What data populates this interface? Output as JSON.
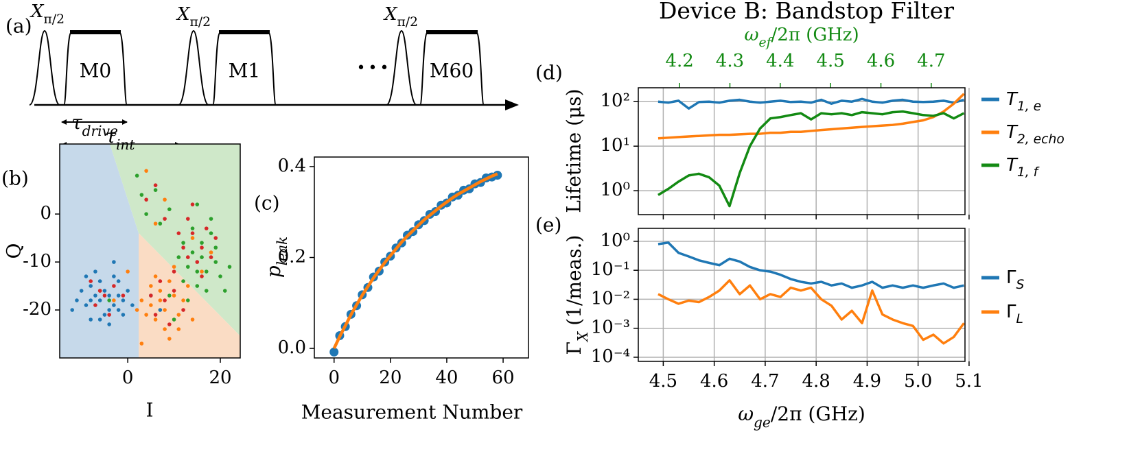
{
  "diagram": {
    "panel_label": "(a)",
    "pulse_label": [
      {
        "text": "X",
        "italic": true
      },
      {
        "text": "π/2",
        "sub": true
      }
    ],
    "measurements": [
      "M0",
      "M1",
      "M60"
    ],
    "ellipsis": "•••",
    "tau_drive": [
      {
        "text": "τ",
        "italic": true
      },
      {
        "text": "drive",
        "sub": true,
        "italic": true
      }
    ],
    "tau_int": [
      {
        "text": "τ",
        "italic": true
      },
      {
        "text": "int",
        "sub": true,
        "italic": true
      }
    ]
  },
  "chart_data": [
    {
      "type": "scatter",
      "panel_label": "(b)",
      "xlabel": "I",
      "ylabel": "Q",
      "xlim": [
        -14.7,
        24.3
      ],
      "ylim": [
        -30,
        14.6
      ],
      "xticks": [
        0,
        20
      ],
      "yticks": [
        -20,
        -10,
        0
      ],
      "series": [
        {
          "color": "#1f77b4",
          "x": [
            -8,
            -3,
            -6,
            -2,
            -9,
            -4,
            -7,
            -1,
            -5,
            -10,
            -3,
            -6,
            0,
            -8,
            -2,
            -11,
            -4,
            -6,
            -1,
            -7,
            -12,
            -3,
            -5,
            -9,
            1,
            -4,
            -8,
            -2,
            5,
            7
          ],
          "values": [
            -15,
            -19,
            -22,
            -14,
            -19,
            -17,
            -12,
            -18,
            -21,
            -16,
            -13,
            -18,
            -16,
            -22,
            -20,
            -18,
            -23,
            -14,
            -21,
            -17,
            -20,
            -10,
            -16,
            -13,
            -19,
            -20,
            -18,
            -17,
            -17,
            -20
          ]
        },
        {
          "color": "#ff7f0e",
          "x": [
            5,
            8,
            10,
            6,
            3,
            9,
            11,
            7,
            4,
            12,
            8,
            6,
            10,
            13,
            2,
            9,
            5,
            14,
            7,
            11,
            -3,
            -6,
            8,
            6,
            14,
            16,
            4,
            0,
            18,
            3
          ],
          "values": [
            -15,
            -20,
            -17,
            -22,
            -18,
            -14,
            -21,
            -18,
            -21,
            -18,
            -24,
            -13,
            -11,
            -15,
            -20,
            -26,
            -19,
            -22,
            -16,
            -24,
            -18,
            -16,
            3,
            -2,
            -5,
            -12,
            9,
            -12,
            -8,
            -27
          ]
        },
        {
          "color": "#2ca02c",
          "x": [
            14,
            17,
            12,
            16,
            19,
            13,
            15,
            18,
            11,
            20,
            16,
            14,
            17,
            12,
            15,
            19,
            9,
            21,
            6,
            4,
            2,
            9,
            -4,
            10,
            13,
            22,
            3,
            18,
            7,
            15
          ],
          "values": [
            -8,
            -12,
            -14,
            -6,
            -10,
            -11,
            -15,
            -4,
            -9,
            -13,
            -9,
            -3,
            -16,
            -6,
            -12,
            -7,
            -17,
            -16,
            5,
            0,
            8,
            1,
            -18,
            -22,
            -18,
            -11,
            4,
            -1,
            -2,
            2
          ]
        },
        {
          "color": "#d62728",
          "x": [
            -5,
            -3,
            -7,
            -4,
            -1,
            -8,
            -6,
            8,
            6,
            10,
            5,
            9,
            7,
            12,
            14,
            16,
            13,
            17,
            15,
            12,
            18,
            14,
            16,
            11,
            19,
            10,
            13,
            4,
            8,
            6
          ],
          "values": [
            -17,
            -15,
            -19,
            -21,
            -17,
            -14,
            -16,
            -18,
            -21,
            -16,
            -17,
            -23,
            -14,
            -20,
            -4,
            -7,
            -1,
            -3,
            -10,
            -7,
            -9,
            2,
            -13,
            -4,
            -5,
            -12,
            -9,
            3,
            -1,
            6
          ]
        }
      ]
    },
    {
      "type": "scatter",
      "panel_label": "(c)",
      "xlabel": "Measurement Number",
      "ylabel": [
        {
          "text": "p",
          "italic": true
        },
        {
          "text": "leak",
          "sub": true,
          "italic": true
        }
      ],
      "xlim": [
        -7,
        69
      ],
      "ylim": [
        -0.021,
        0.421
      ],
      "xticks": [
        0,
        20,
        40,
        60
      ],
      "yticks": [
        {
          "value": 0,
          "label": "0.0"
        },
        0.2,
        0.4
      ],
      "series": [
        {
          "color": "#1f77b4",
          "style": "markers",
          "x": [
            0,
            2,
            4,
            6,
            8,
            10,
            12,
            14,
            16,
            18,
            20,
            22,
            24,
            26,
            28,
            30,
            32,
            34,
            36,
            38,
            40,
            42,
            44,
            46,
            48,
            50,
            52,
            54,
            56,
            58
          ],
          "values": [
            -0.008,
            0.028,
            0.048,
            0.075,
            0.094,
            0.118,
            0.134,
            0.157,
            0.17,
            0.19,
            0.203,
            0.221,
            0.232,
            0.249,
            0.257,
            0.272,
            0.281,
            0.295,
            0.301,
            0.315,
            0.32,
            0.333,
            0.337,
            0.348,
            0.351,
            0.362,
            0.365,
            0.375,
            0.377,
            0.381
          ]
        },
        {
          "color": "#ff7f0e",
          "style": "line",
          "x": [
            0,
            2,
            4,
            6,
            8,
            10,
            12,
            14,
            16,
            18,
            20,
            22,
            24,
            26,
            28,
            30,
            32,
            34,
            36,
            38,
            40,
            42,
            44,
            46,
            48,
            50,
            52,
            54,
            56,
            58
          ],
          "values": [
            0,
            0.026,
            0.05,
            0.074,
            0.096,
            0.117,
            0.136,
            0.155,
            0.172,
            0.189,
            0.204,
            0.219,
            0.234,
            0.247,
            0.259,
            0.271,
            0.283,
            0.293,
            0.303,
            0.313,
            0.322,
            0.331,
            0.339,
            0.346,
            0.353,
            0.36,
            0.367,
            0.373,
            0.379,
            0.384
          ]
        }
      ]
    },
    {
      "type": "line",
      "title": "Device B: Bandstop Filter",
      "panel_label": "(d)",
      "ylabel": "Lifetime (μs)",
      "x2label": [
        {
          "text": "ω",
          "italic": true
        },
        {
          "text": "ef",
          "sub": true,
          "italic": true
        },
        {
          "text": "/2π (GHz)"
        }
      ],
      "x2lim": [
        4.118,
        4.767
      ],
      "x2ticks": [
        4.2,
        4.3,
        4.4,
        4.5,
        4.6,
        4.7
      ],
      "x2color": "#138a13",
      "xlim": [
        4.451,
        5.092
      ],
      "xticks": [
        4.5,
        4.6,
        4.7,
        4.8,
        4.9,
        {
          "value": 5,
          "label": "5.0"
        },
        5.1
      ],
      "xticklabels": false,
      "ylog": true,
      "ylim": [
        0.29,
        205
      ],
      "yticks": [
        {
          "value": 1,
          "label": "10⁰"
        },
        {
          "value": 10,
          "label": "10¹"
        },
        {
          "value": 100,
          "label": "10²"
        }
      ],
      "grid": true,
      "legend": "upper right outside",
      "x": [
        4.49,
        4.51,
        4.53,
        4.55,
        4.57,
        4.59,
        4.61,
        4.63,
        4.65,
        4.67,
        4.69,
        4.71,
        4.73,
        4.75,
        4.77,
        4.79,
        4.81,
        4.83,
        4.85,
        4.87,
        4.89,
        4.91,
        4.93,
        4.95,
        4.97,
        4.99,
        5.01,
        5.03,
        5.05,
        5.07,
        5.09
      ],
      "series": [
        {
          "name": [
            {
              "text": "T",
              "italic": true
            },
            {
              "text": "1, e",
              "sub": true,
              "italic": true
            }
          ],
          "color": "#1f77b4",
          "values": [
            100,
            95,
            105,
            70,
            98,
            100,
            95,
            105,
            110,
            100,
            95,
            100,
            105,
            98,
            100,
            95,
            110,
            90,
            105,
            100,
            115,
            100,
            95,
            105,
            110,
            100,
            98,
            100,
            105,
            95,
            110
          ]
        },
        {
          "name": [
            {
              "text": "T",
              "italic": true
            },
            {
              "text": "2, echo",
              "sub": true,
              "italic": true
            }
          ],
          "color": "#ff7f0e",
          "values": [
            15,
            15.5,
            16,
            16.5,
            17,
            17.5,
            18,
            18,
            18.5,
            19,
            19,
            20,
            20,
            21,
            21,
            22,
            23,
            24,
            25,
            26,
            27,
            28,
            29,
            30,
            32,
            35,
            38,
            45,
            60,
            90,
            150
          ]
        },
        {
          "name": [
            {
              "text": "T",
              "italic": true
            },
            {
              "text": "1, f",
              "sub": true,
              "italic": true
            }
          ],
          "color": "#138a13",
          "values": [
            0.8,
            1.1,
            1.6,
            2.2,
            2.4,
            2.0,
            1.3,
            0.45,
            2.5,
            10,
            25,
            42,
            45,
            50,
            55,
            40,
            55,
            52,
            55,
            50,
            58,
            55,
            52,
            58,
            60,
            55,
            50,
            48,
            55,
            42,
            55
          ]
        }
      ]
    },
    {
      "type": "line",
      "panel_label": "(e)",
      "ylabel": [
        {
          "text": "Γ"
        },
        {
          "text": "X",
          "sub": true,
          "italic": true
        },
        {
          "text": " (1/meas.)"
        }
      ],
      "xlabel": [
        {
          "text": "ω",
          "italic": true
        },
        {
          "text": "ge",
          "sub": true,
          "italic": true
        },
        {
          "text": "/2π (GHz)"
        }
      ],
      "xlim": [
        4.451,
        5.092
      ],
      "xticks": [
        4.5,
        4.6,
        4.7,
        4.8,
        4.9,
        {
          "value": 5,
          "label": "5.0"
        },
        5.1
      ],
      "ylog": true,
      "ylim": [
        7.2e-05,
        2.8
      ],
      "yticks": [
        {
          "value": 0.0001,
          "label": "10⁻⁴"
        },
        {
          "value": 0.001,
          "label": "10⁻³"
        },
        {
          "value": 0.01,
          "label": "10⁻²"
        },
        {
          "value": 0.1,
          "label": "10⁻¹"
        },
        {
          "value": 1,
          "label": "10⁰"
        }
      ],
      "grid": true,
      "legend": "center right outside",
      "x": [
        4.49,
        4.51,
        4.53,
        4.55,
        4.57,
        4.59,
        4.61,
        4.63,
        4.65,
        4.67,
        4.69,
        4.71,
        4.73,
        4.75,
        4.77,
        4.79,
        4.81,
        4.83,
        4.85,
        4.87,
        4.89,
        4.91,
        4.93,
        4.95,
        4.97,
        4.99,
        5.01,
        5.03,
        5.05,
        5.07,
        5.09
      ],
      "series": [
        {
          "name": [
            {
              "text": "Γ"
            },
            {
              "text": "S",
              "sub": true,
              "italic": true
            }
          ],
          "color": "#1f77b4",
          "values": [
            0.8,
            0.9,
            0.4,
            0.3,
            0.22,
            0.18,
            0.15,
            0.25,
            0.2,
            0.13,
            0.1,
            0.09,
            0.07,
            0.05,
            0.04,
            0.035,
            0.04,
            0.03,
            0.035,
            0.025,
            0.03,
            0.04,
            0.025,
            0.03,
            0.025,
            0.03,
            0.025,
            0.03,
            0.035,
            0.025,
            0.03
          ]
        },
        {
          "name": [
            {
              "text": "Γ"
            },
            {
              "text": "L",
              "sub": true,
              "italic": true
            }
          ],
          "color": "#ff7f0e",
          "values": [
            0.015,
            0.01,
            0.007,
            0.009,
            0.008,
            0.012,
            0.02,
            0.045,
            0.015,
            0.03,
            0.01,
            0.015,
            0.012,
            0.025,
            0.02,
            0.025,
            0.01,
            0.006,
            0.002,
            0.004,
            0.0015,
            0.02,
            0.003,
            0.002,
            0.0015,
            0.0012,
            0.0004,
            0.0006,
            0.0003,
            0.0005,
            0.0015
          ]
        }
      ]
    }
  ]
}
